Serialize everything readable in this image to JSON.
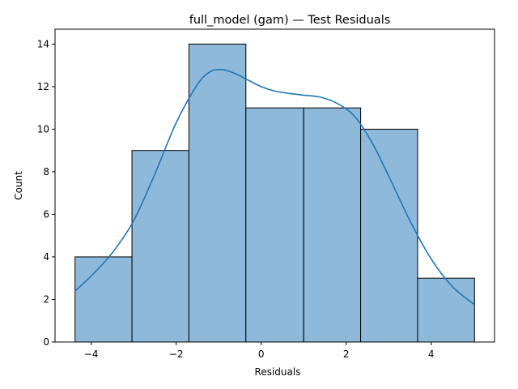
{
  "chart_data": {
    "type": "bar",
    "subtype": "histogram",
    "title": "full_model (gam) — Test Residuals",
    "xlabel": "Residuals",
    "ylabel": "Count",
    "bin_edges": [
      -4.38,
      -3.04,
      -1.7,
      -0.36,
      1.0,
      2.34,
      3.68,
      5.02
    ],
    "counts": [
      4,
      9,
      14,
      11,
      11,
      10,
      3
    ],
    "xlim": [
      -4.85,
      5.49
    ],
    "ylim": [
      0,
      14.7
    ],
    "xticks": [
      -4,
      -2,
      0,
      2,
      4
    ],
    "xtick_labels": [
      "−4",
      "−2",
      "0",
      "2",
      "4"
    ],
    "yticks": [
      0,
      2,
      4,
      6,
      8,
      10,
      12,
      14
    ],
    "ytick_labels": [
      "0",
      "2",
      "4",
      "6",
      "8",
      "10",
      "12",
      "14"
    ],
    "kde": {
      "x": [
        -4.38,
        -4.0,
        -3.5,
        -3.0,
        -2.5,
        -2.0,
        -1.5,
        -1.2,
        -0.9,
        -0.6,
        -0.3,
        0.0,
        0.3,
        0.6,
        1.0,
        1.4,
        1.8,
        2.2,
        2.6,
        3.0,
        3.5,
        4.0,
        4.5,
        5.02
      ],
      "y": [
        2.4,
        3.1,
        4.2,
        5.7,
        7.9,
        10.3,
        12.1,
        12.7,
        12.8,
        12.6,
        12.3,
        12.0,
        11.8,
        11.7,
        11.6,
        11.5,
        11.2,
        10.6,
        9.4,
        7.8,
        5.7,
        3.9,
        2.6,
        1.75
      ]
    },
    "grid": false,
    "colors": {
      "bar_fill": "#8fb9da",
      "bar_edge": "#000000",
      "kde_line": "#1f77b4"
    }
  }
}
